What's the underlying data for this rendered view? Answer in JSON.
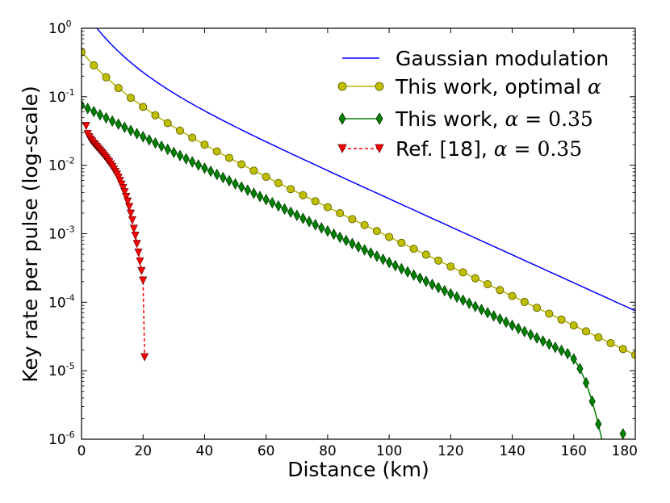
{
  "chart_data": {
    "type": "line",
    "title": "",
    "xlabel": "Distance (km)",
    "ylabel": "Key rate per pulse (log-scale)",
    "xlim": [
      0,
      180
    ],
    "ylim": [
      1e-06,
      1
    ],
    "yscale": "log",
    "xticks": [
      "0",
      "20",
      "40",
      "60",
      "80",
      "100",
      "120",
      "140",
      "160",
      "180"
    ],
    "ytick_base": "10",
    "yticks": [
      {
        "exp": "-6",
        "value": 1e-06
      },
      {
        "exp": "-5",
        "value": 1e-05
      },
      {
        "exp": "-4",
        "value": 0.0001
      },
      {
        "exp": "-3",
        "value": 0.001
      },
      {
        "exp": "-2",
        "value": 0.01
      },
      {
        "exp": "-1",
        "value": 0.1
      },
      {
        "exp": "0",
        "value": 1
      }
    ],
    "legend_position": "top-right",
    "series": [
      {
        "name": "Gaussian modulation",
        "label_text": "Gaussian modulation",
        "color": "#0000ff",
        "marker": "none",
        "linestyle": "solid",
        "type": "gaussian",
        "x_start": 5,
        "x_end": 180,
        "y_at_start": 1.0,
        "y_at_end": 7.5e-05
      },
      {
        "name": "This work, optimal α",
        "label_text": "This work, optimal ",
        "math_symbol": "α",
        "color": "#b5b500",
        "marker_fill": "#bfbf00",
        "marker": "circle",
        "linestyle": "solid",
        "type": "optimal",
        "x_start": 0,
        "x_end": 180,
        "step": 4,
        "y_at_start": 0.45,
        "y_at_end": 1.7e-05
      },
      {
        "name": "This work, α = 0.35",
        "label_text": "This work, ",
        "math_symbol": "α",
        "math_value": " = 0.35",
        "color": "#007f00",
        "marker_fill": "#008000",
        "marker": "diamond",
        "linestyle": "solid",
        "type": "fixed",
        "x_start": 0,
        "x_end": 176,
        "step": 2,
        "y_at_start": 0.075,
        "y_at_end": 1.2e-06
      },
      {
        "name": "Ref. [18], α = 0.35",
        "label_text": "Ref. [18], ",
        "math_symbol": "α",
        "math_value": " = 0.35",
        "color": "#ff0000",
        "marker_fill": "#ff0000",
        "marker": "triangle-down",
        "linestyle": "dashed",
        "type": "ref",
        "points": [
          [
            1.5,
            0.038
          ],
          [
            2.0,
            0.029
          ],
          [
            2.5,
            0.026
          ],
          [
            3.0,
            0.024
          ],
          [
            3.5,
            0.0225
          ],
          [
            4.0,
            0.021
          ],
          [
            4.5,
            0.0198
          ],
          [
            5.0,
            0.0187
          ],
          [
            5.5,
            0.0176
          ],
          [
            6.0,
            0.0166
          ],
          [
            6.5,
            0.0156
          ],
          [
            7.0,
            0.0147
          ],
          [
            7.5,
            0.0138
          ],
          [
            8.0,
            0.0129
          ],
          [
            8.5,
            0.012
          ],
          [
            9.0,
            0.0112
          ],
          [
            9.5,
            0.0104
          ],
          [
            10.0,
            0.0096
          ],
          [
            10.5,
            0.0088
          ],
          [
            11.0,
            0.0081
          ],
          [
            11.5,
            0.0074
          ],
          [
            12.0,
            0.0067
          ],
          [
            12.5,
            0.006
          ],
          [
            13.0,
            0.0053
          ],
          [
            13.5,
            0.0047
          ],
          [
            14.0,
            0.0041
          ],
          [
            14.5,
            0.0035
          ],
          [
            15.0,
            0.003
          ],
          [
            15.5,
            0.0025
          ],
          [
            16.0,
            0.002
          ],
          [
            16.5,
            0.0016
          ],
          [
            17.0,
            0.0012
          ],
          [
            17.5,
            0.00095
          ],
          [
            18.0,
            0.00072
          ],
          [
            18.5,
            0.00054
          ],
          [
            19.0,
            0.0004
          ],
          [
            19.5,
            0.00029
          ],
          [
            20.0,
            0.00021
          ],
          [
            20.5,
            1.6e-05
          ]
        ]
      }
    ]
  }
}
